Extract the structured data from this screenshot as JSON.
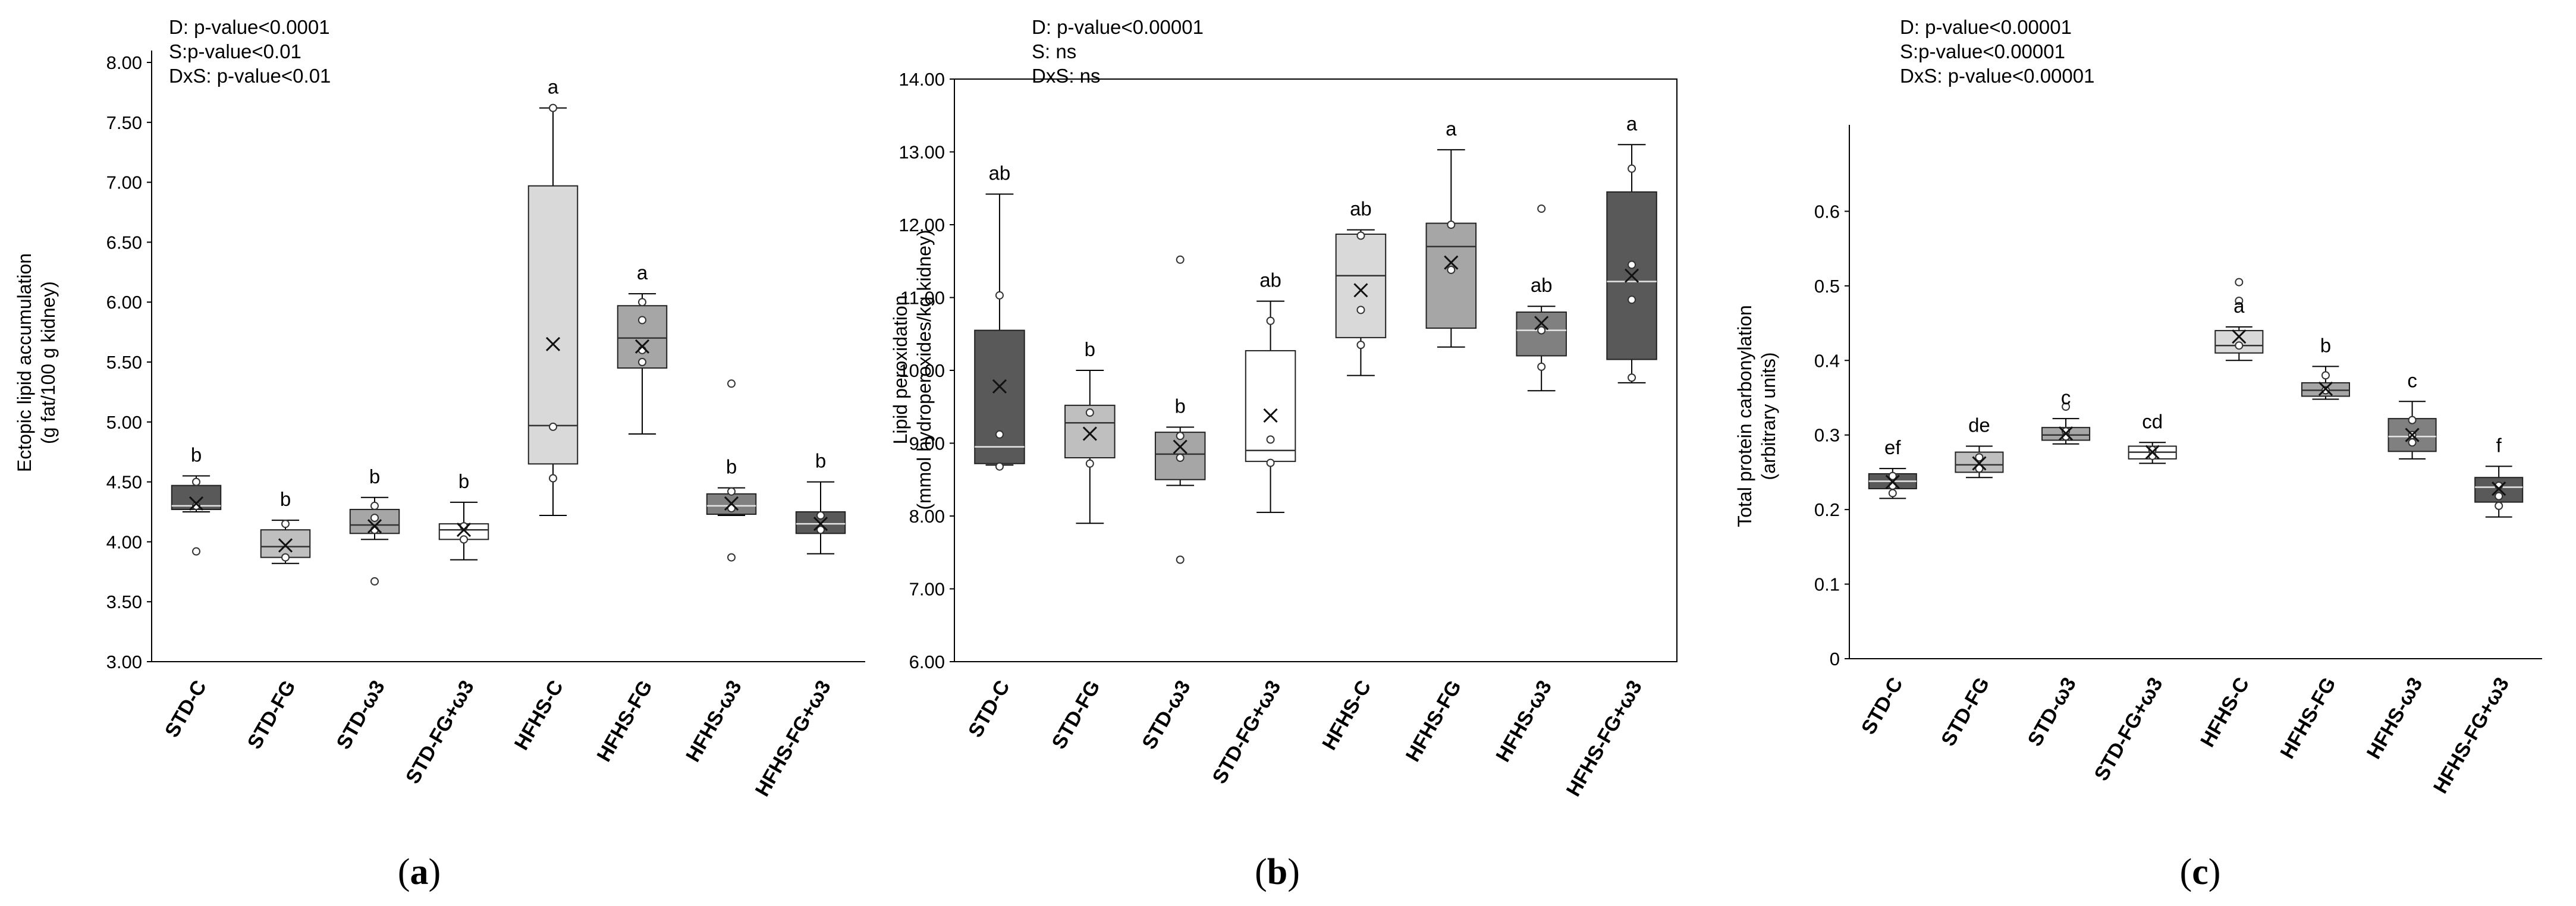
{
  "chart_data": [
    {
      "type": "box",
      "panel_label": "a",
      "stats_lines": [
        "D: p-value<0.0001",
        "S:p-value<0.01",
        "DxS: p-value<0.01"
      ],
      "ylabel_lines": [
        "Ectopic lipid accumulation",
        "(g fat/100 g kidney)"
      ],
      "ylim": [
        3.0,
        8.0
      ],
      "yticks": [
        3.0,
        3.5,
        4.0,
        4.5,
        5.0,
        5.5,
        6.0,
        6.5,
        7.0,
        7.5,
        8.0
      ],
      "ytick_labels": [
        "3.00",
        "3.50",
        "4.00",
        "4.50",
        "5.00",
        "5.50",
        "6.00",
        "6.50",
        "7.00",
        "7.50",
        "8.00"
      ],
      "axis_line": "left",
      "grid": false,
      "groups": [
        {
          "label": "STD-C",
          "fill": "#595959",
          "whisker_low": 4.25,
          "q1": 4.27,
          "median": 4.3,
          "q3": 4.47,
          "whisker_high": 4.55,
          "mean": 4.32,
          "points": [
            4.5,
            4.3,
            3.92
          ],
          "letter": "b"
        },
        {
          "label": "STD-FG",
          "fill": "#bfbfbf",
          "whisker_low": 3.82,
          "q1": 3.87,
          "median": 3.96,
          "q3": 4.1,
          "whisker_high": 4.18,
          "mean": 3.97,
          "points": [
            4.15,
            3.87
          ],
          "letter": "b"
        },
        {
          "label": "STD-ω3",
          "fill": "#a6a6a6",
          "whisker_low": 4.02,
          "q1": 4.07,
          "median": 4.14,
          "q3": 4.27,
          "whisker_high": 4.37,
          "mean": 4.13,
          "points": [
            4.3,
            4.2,
            4.1,
            3.67
          ],
          "letter": "b"
        },
        {
          "label": "STD-FG+ω3",
          "fill": "#ffffff",
          "whisker_low": 3.85,
          "q1": 4.02,
          "median": 4.1,
          "q3": 4.15,
          "whisker_high": 4.33,
          "mean": 4.1,
          "points": [
            4.13,
            4.02
          ],
          "letter": "b"
        },
        {
          "label": "HFHS-C",
          "fill": "#d9d9d9",
          "whisker_low": 4.22,
          "q1": 4.65,
          "median": 4.97,
          "q3": 6.97,
          "whisker_high": 7.62,
          "mean": 5.65,
          "points": [
            7.62,
            4.96,
            4.53
          ],
          "letter": "a"
        },
        {
          "label": "HFHS-FG",
          "fill": "#a6a6a6",
          "whisker_low": 4.9,
          "q1": 5.45,
          "median": 5.7,
          "q3": 5.97,
          "whisker_high": 6.07,
          "mean": 5.63,
          "points": [
            6.0,
            5.85,
            5.6,
            5.5
          ],
          "letter": "a"
        },
        {
          "label": "HFHS-ω3",
          "fill": "#808080",
          "whisker_low": 4.22,
          "q1": 4.23,
          "median": 4.3,
          "q3": 4.4,
          "whisker_high": 4.45,
          "mean": 4.32,
          "points": [
            5.32,
            4.42,
            4.28,
            3.87
          ],
          "letter": "b"
        },
        {
          "label": "HFHS-FG+ω3",
          "fill": "#595959",
          "whisker_low": 3.9,
          "q1": 4.07,
          "median": 4.15,
          "q3": 4.25,
          "whisker_high": 4.5,
          "mean": 4.15,
          "points": [
            4.22,
            4.1
          ],
          "letter": "b"
        }
      ]
    },
    {
      "type": "box",
      "panel_label": "b",
      "stats_lines": [
        "D: p-value<0.00001",
        "S: ns",
        "DxS: ns"
      ],
      "ylabel_lines": [
        "Lipid peroxidation",
        "(mmol hydroperoxides/kg kidney)"
      ],
      "ylim": [
        6.0,
        14.0
      ],
      "yticks": [
        6.0,
        7.0,
        8.0,
        9.0,
        10.0,
        11.0,
        12.0,
        13.0,
        14.0
      ],
      "ytick_labels": [
        "6.00",
        "7.00",
        "8.00",
        "9.00",
        "10.00",
        "11.00",
        "12.00",
        "13.00",
        "14.00"
      ],
      "axis_line": "box",
      "grid": false,
      "groups": [
        {
          "label": "STD-C",
          "fill": "#595959",
          "whisker_low": 8.7,
          "q1": 8.72,
          "median": 8.95,
          "q3": 10.55,
          "whisker_high": 12.42,
          "mean": 9.78,
          "points": [
            11.03,
            9.12,
            8.68
          ],
          "letter": "ab"
        },
        {
          "label": "STD-FG",
          "fill": "#bfbfbf",
          "whisker_low": 7.9,
          "q1": 8.8,
          "median": 9.28,
          "q3": 9.52,
          "whisker_high": 10.0,
          "mean": 9.13,
          "points": [
            9.42,
            8.72
          ],
          "letter": "b"
        },
        {
          "label": "STD-ω3",
          "fill": "#a6a6a6",
          "whisker_low": 8.42,
          "q1": 8.5,
          "median": 8.85,
          "q3": 9.15,
          "whisker_high": 9.22,
          "mean": 8.95,
          "points": [
            11.52,
            9.1,
            8.8,
            7.4
          ],
          "letter": "b"
        },
        {
          "label": "STD-FG+ω3",
          "fill": "#ffffff",
          "whisker_low": 8.05,
          "q1": 8.75,
          "median": 8.9,
          "q3": 10.27,
          "whisker_high": 10.95,
          "mean": 9.38,
          "points": [
            10.68,
            9.05,
            8.73
          ],
          "letter": "ab"
        },
        {
          "label": "HFHS-C",
          "fill": "#d9d9d9",
          "whisker_low": 9.93,
          "q1": 10.45,
          "median": 11.3,
          "q3": 11.87,
          "whisker_high": 11.93,
          "mean": 11.1,
          "points": [
            11.85,
            10.83,
            10.35
          ],
          "letter": "ab"
        },
        {
          "label": "HFHS-FG",
          "fill": "#a6a6a6",
          "whisker_low": 10.32,
          "q1": 10.58,
          "median": 11.7,
          "q3": 12.02,
          "whisker_high": 13.03,
          "mean": 11.48,
          "points": [
            12.0,
            11.38
          ],
          "letter": "a"
        },
        {
          "label": "HFHS-ω3",
          "fill": "#808080",
          "whisker_low": 9.72,
          "q1": 10.2,
          "median": 10.55,
          "q3": 10.8,
          "whisker_high": 10.88,
          "mean": 10.65,
          "points": [
            12.22,
            10.55,
            10.05
          ],
          "letter": "ab"
        },
        {
          "label": "HFHS-FG+ω3",
          "fill": "#595959",
          "whisker_low": 9.83,
          "q1": 10.15,
          "median": 11.22,
          "q3": 12.45,
          "whisker_high": 13.1,
          "mean": 11.3,
          "points": [
            12.77,
            11.45,
            10.97,
            9.9
          ],
          "letter": "a"
        }
      ]
    },
    {
      "type": "box",
      "panel_label": "c",
      "stats_lines": [
        "D: p-value<0.00001",
        "S:p-value<0.00001",
        "DxS: p-value<0.00001"
      ],
      "ylabel_lines": [
        "Total protein carbonylation",
        "(arbitrary units)"
      ],
      "ylim": [
        0,
        0.7
      ],
      "yticks": [
        0,
        0.1,
        0.2,
        0.3,
        0.4,
        0.5,
        0.6
      ],
      "ytick_labels": [
        "0",
        "0.1",
        "0.2",
        "0.3",
        "0.4",
        "0.5",
        "0.6"
      ],
      "axis_line": "left",
      "grid": false,
      "groups": [
        {
          "label": "STD-C",
          "fill": "#595959",
          "whisker_low": 0.215,
          "q1": 0.228,
          "median": 0.238,
          "q3": 0.248,
          "whisker_high": 0.255,
          "mean": 0.237,
          "points": [
            0.245,
            0.232,
            0.222
          ],
          "letter": "ef"
        },
        {
          "label": "STD-FG",
          "fill": "#bfbfbf",
          "whisker_low": 0.243,
          "q1": 0.25,
          "median": 0.26,
          "q3": 0.277,
          "whisker_high": 0.285,
          "mean": 0.262,
          "points": [
            0.27,
            0.255
          ],
          "letter": "de"
        },
        {
          "label": "STD-ω3",
          "fill": "#a6a6a6",
          "whisker_low": 0.288,
          "q1": 0.293,
          "median": 0.3,
          "q3": 0.31,
          "whisker_high": 0.322,
          "mean": 0.302,
          "points": [
            0.338,
            0.305,
            0.298
          ],
          "letter": "c"
        },
        {
          "label": "STD-FG+ω3",
          "fill": "#ffffff",
          "whisker_low": 0.262,
          "q1": 0.268,
          "median": 0.277,
          "q3": 0.285,
          "whisker_high": 0.29,
          "mean": 0.277,
          "points": [
            0.28,
            0.272
          ],
          "letter": "cd"
        },
        {
          "label": "HFHS-C",
          "fill": "#d9d9d9",
          "whisker_low": 0.4,
          "q1": 0.41,
          "median": 0.42,
          "q3": 0.44,
          "whisker_high": 0.445,
          "mean": 0.432,
          "points": [
            0.505,
            0.48,
            0.42
          ],
          "letter": "a"
        },
        {
          "label": "HFHS-FG",
          "fill": "#a6a6a6",
          "whisker_low": 0.348,
          "q1": 0.352,
          "median": 0.36,
          "q3": 0.37,
          "whisker_high": 0.392,
          "mean": 0.362,
          "points": [
            0.38,
            0.36
          ],
          "letter": "b"
        },
        {
          "label": "HFHS-ω3",
          "fill": "#808080",
          "whisker_low": 0.268,
          "q1": 0.278,
          "median": 0.298,
          "q3": 0.322,
          "whisker_high": 0.345,
          "mean": 0.3,
          "points": [
            0.32,
            0.3,
            0.29
          ],
          "letter": "c"
        },
        {
          "label": "HFHS-FG+ω3",
          "fill": "#595959",
          "whisker_low": 0.19,
          "q1": 0.21,
          "median": 0.23,
          "q3": 0.243,
          "whisker_high": 0.258,
          "mean": 0.228,
          "points": [
            0.232,
            0.218,
            0.205
          ],
          "letter": "f"
        }
      ]
    }
  ]
}
